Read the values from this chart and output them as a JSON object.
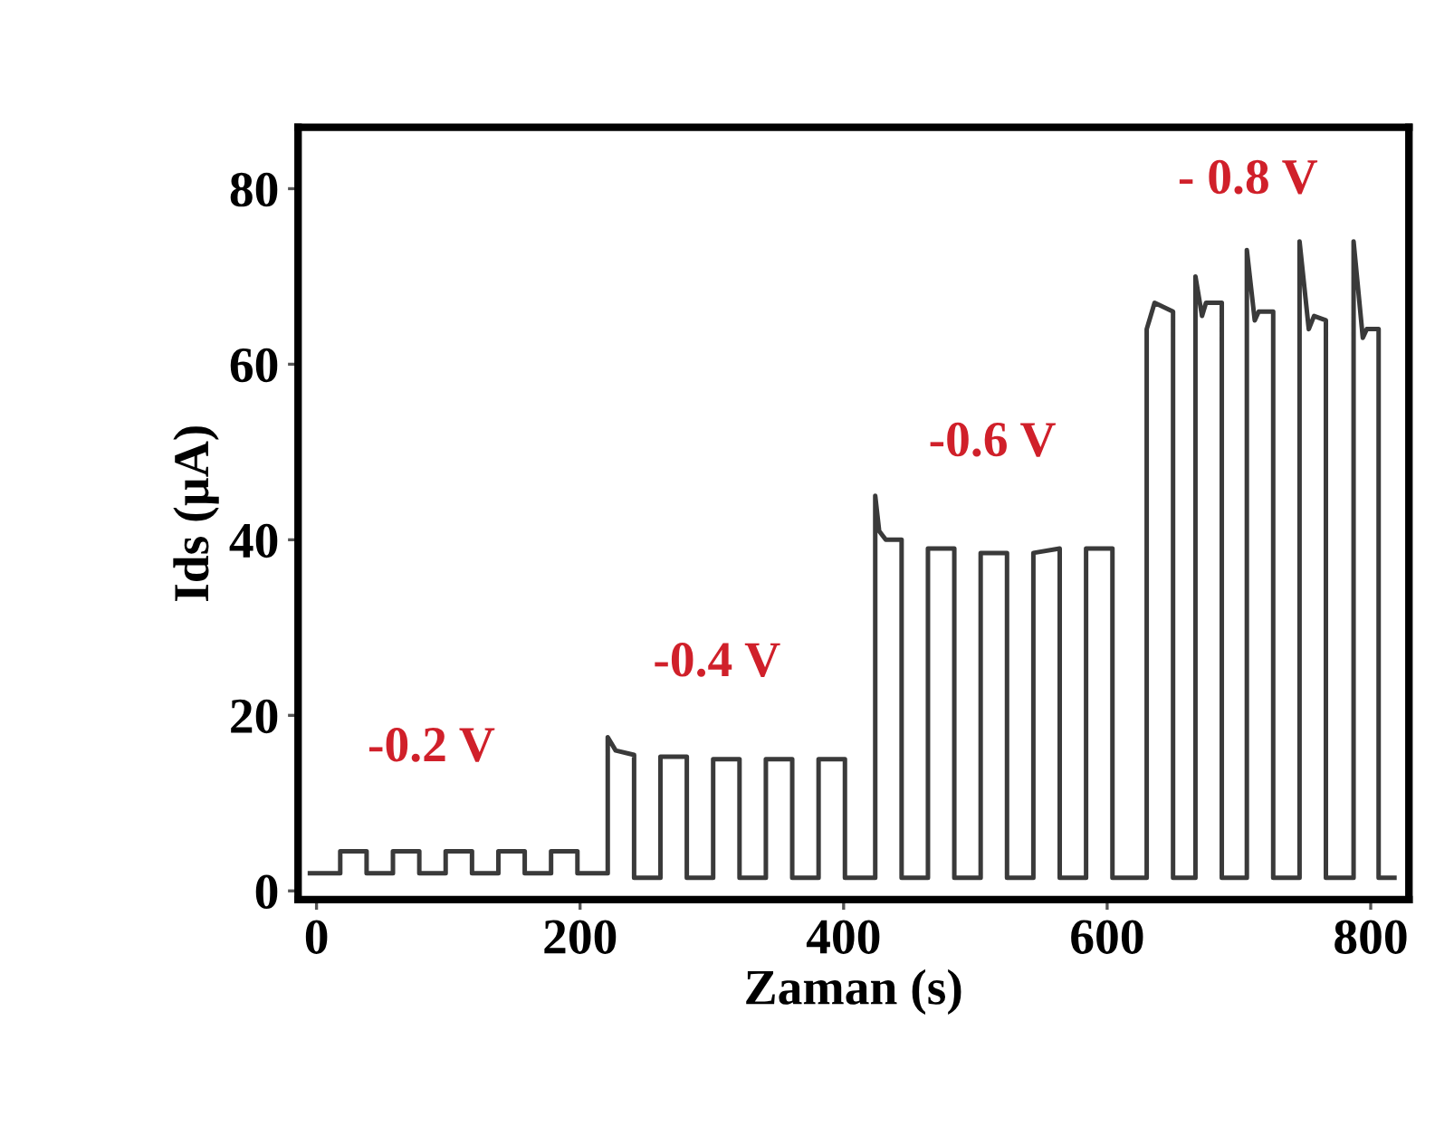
{
  "chart_data": {
    "type": "line",
    "xlabel": "Zaman (s)",
    "ylabel": "Ids (µA)",
    "xlim": [
      -14,
      829
    ],
    "ylim": [
      -1,
      87
    ],
    "xticks": [
      0,
      200,
      400,
      600,
      800
    ],
    "yticks": [
      0,
      20,
      40,
      60,
      80
    ],
    "grid": false,
    "legend": false,
    "marker": "none",
    "line_style": "solid",
    "series": [
      {
        "color": "#3a3a3a",
        "x": [
          -5,
          18,
          18,
          38,
          38,
          58,
          58,
          78,
          78,
          98,
          98,
          118,
          118,
          138,
          138,
          158,
          158,
          178,
          178,
          198,
          198,
          221,
          221,
          227,
          241,
          241,
          261,
          261,
          281,
          281,
          301,
          301,
          321,
          321,
          341,
          341,
          361,
          361,
          381,
          381,
          401,
          401,
          424,
          424,
          427,
          432,
          444,
          444,
          464,
          464,
          484,
          484,
          504,
          504,
          524,
          524,
          544,
          544,
          564,
          564,
          584,
          584,
          604,
          604,
          630,
          630,
          636,
          650,
          650,
          667,
          667,
          672,
          675,
          687,
          687,
          706,
          706,
          712,
          715,
          726,
          726,
          746,
          746,
          753,
          757,
          766,
          766,
          787,
          787,
          794,
          797,
          806,
          806,
          818
        ],
        "values": [
          2,
          2,
          4.5,
          4.5,
          2,
          2,
          4.5,
          4.5,
          2,
          2,
          4.5,
          4.5,
          2,
          2,
          4.5,
          4.5,
          2,
          2,
          4.5,
          4.5,
          2,
          2,
          17.5,
          16,
          15.5,
          1.5,
          1.5,
          15.3,
          15.3,
          1.5,
          1.5,
          15,
          15,
          1.5,
          1.5,
          15,
          15,
          1.5,
          1.5,
          15,
          15,
          1.5,
          1.5,
          45,
          41,
          40,
          40,
          1.5,
          1.5,
          39,
          39,
          1.5,
          1.5,
          38.5,
          38.5,
          1.5,
          1.5,
          38.5,
          39,
          1.5,
          1.5,
          39,
          39,
          1.5,
          1.5,
          64,
          67,
          66,
          1.5,
          1.5,
          70,
          65.5,
          67,
          67,
          1.5,
          1.5,
          73,
          65,
          66,
          66,
          1.5,
          1.5,
          74,
          64,
          65.5,
          65,
          1.5,
          1.5,
          74,
          63,
          64,
          64,
          1.5,
          1.5
        ]
      }
    ],
    "annotations": [
      "-0.2 V",
      "-0.4 V",
      "-0.6 V",
      "- 0.8 V"
    ]
  }
}
